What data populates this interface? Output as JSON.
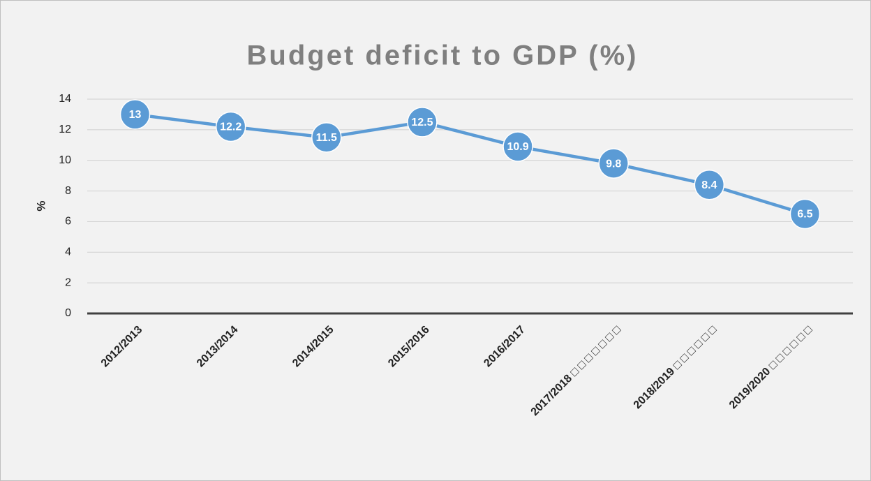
{
  "chart_data": {
    "type": "line",
    "title": "Budget deficit to GDP (%)",
    "y_label": "%",
    "categories": [
      "2012/2013",
      "2013/2014",
      "2014/2015",
      "2015/2016",
      "2016/2017",
      "2017/2018 □ □ □ □ □ □ □",
      "2018/2019 □ □ □ □ □ □",
      "2019/2020 □ □ □ □ □ □"
    ],
    "series": [
      {
        "name": "Budget deficit to GDP",
        "color": "#5b9bd5",
        "values": [
          13,
          12.2,
          11.5,
          12.5,
          10.9,
          9.8,
          8.4,
          6.5
        ]
      }
    ],
    "ylim": [
      0,
      14
    ],
    "yticks": [
      0,
      2,
      4,
      6,
      8,
      10,
      12,
      14
    ],
    "grid": true,
    "data_labels": true
  }
}
